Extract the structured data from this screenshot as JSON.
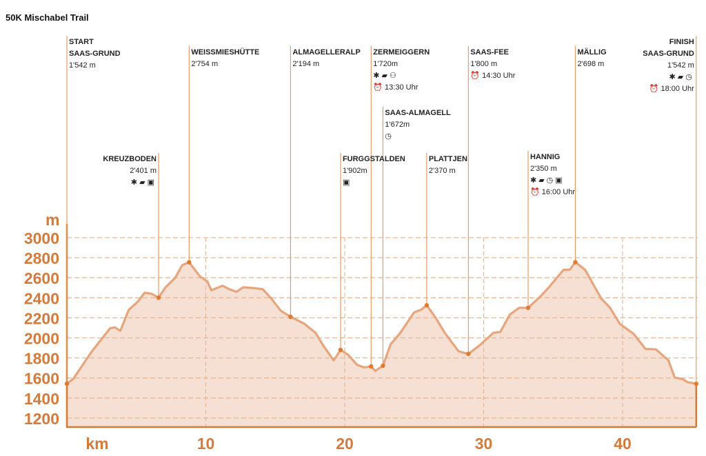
{
  "title": "50K Mischabel Trail",
  "icons": {
    "aid": "food-aid-icon",
    "van": "medical-van-icon",
    "toilets": "toilets-icon",
    "cablecar": "cable-car-icon",
    "stopwatch": "stopwatch-icon",
    "alarm": "alarm-clock-icon"
  },
  "colors": {
    "axis": "#d47a3a",
    "profile_line": "#e6a57c",
    "profile_fill": "#f5e0d3",
    "marker_line": "#e59c6c",
    "marker_dot": "#e07b30",
    "grid": "#e8b896"
  },
  "chart_data": {
    "type": "area",
    "title": "50K Mischabel Trail",
    "xlabel": "km",
    "ylabel": "m",
    "xlim": [
      0,
      45.3
    ],
    "ylim": [
      1100,
      3000
    ],
    "xticks": [
      10,
      20,
      30,
      40
    ],
    "yticks": [
      1200,
      1400,
      1600,
      1800,
      2000,
      2200,
      2400,
      2600,
      2800,
      3000
    ],
    "grid": true,
    "profile": {
      "km": [
        0,
        0.45,
        1.8,
        3.1,
        3.45,
        3.85,
        4.45,
        5.1,
        5.6,
        6.1,
        6.6,
        7.1,
        7.8,
        8.3,
        8.8,
        9.6,
        10.1,
        10.4,
        11.2,
        11.7,
        12.2,
        12.7,
        13.6,
        14.1,
        14.7,
        15.4,
        16.1,
        17.1,
        17.9,
        18.4,
        19.2,
        19.7,
        20.25,
        20.9,
        21.4,
        21.9,
        22.2,
        22.75,
        23.3,
        24.0,
        25.0,
        25.5,
        25.9,
        26.5,
        27.2,
        28.2,
        28.9,
        29.7,
        30.7,
        31.2,
        31.9,
        32.55,
        33.2,
        34.1,
        34.7,
        35.75,
        36.2,
        36.6,
        37.3,
        38.45,
        39.1,
        39.8,
        40.8,
        41.65,
        42.4,
        43.3,
        43.75,
        44.3,
        44.7,
        45.3
      ],
      "elevation": [
        1542,
        1590,
        1865,
        2095,
        2105,
        2070,
        2280,
        2360,
        2450,
        2440,
        2401,
        2505,
        2600,
        2725,
        2754,
        2610,
        2565,
        2475,
        2520,
        2485,
        2460,
        2505,
        2495,
        2485,
        2395,
        2270,
        2210,
        2140,
        2050,
        1935,
        1775,
        1880,
        1830,
        1730,
        1705,
        1715,
        1670,
        1722,
        1935,
        2050,
        2255,
        2280,
        2325,
        2210,
        2050,
        1865,
        1840,
        1925,
        2050,
        2060,
        2235,
        2300,
        2300,
        2415,
        2505,
        2680,
        2680,
        2755,
        2680,
        2395,
        2300,
        2140,
        2040,
        1890,
        1885,
        1775,
        1605,
        1590,
        1557,
        1542
      ]
    },
    "stations": [
      {
        "lines": [
          "START",
          "SAAS-GRUND",
          "1'542 m"
        ],
        "km": 0,
        "icons": [],
        "time": ""
      },
      {
        "lines": [
          "KREUZBODEN",
          "2'401 m"
        ],
        "km": 6.6,
        "icons": [
          "aid",
          "van",
          "cablecar"
        ],
        "time": ""
      },
      {
        "lines": [
          "WEISSMIESHÜTTE",
          "2'754 m"
        ],
        "km": 8.8,
        "icons": [],
        "time": ""
      },
      {
        "lines": [
          "ALMAGELLERALP",
          "2'194 m"
        ],
        "km": 16.1,
        "icons": [],
        "time": ""
      },
      {
        "lines": [
          "FURGGSTALDEN",
          "1'902m"
        ],
        "km": 19.7,
        "icons": [
          "cablecar"
        ],
        "time": ""
      },
      {
        "lines": [
          "ZERMEIGGERN",
          "1'720m"
        ],
        "km": 21.9,
        "icons": [
          "aid",
          "van",
          "toilets"
        ],
        "time": "13:30 Uhr"
      },
      {
        "lines": [
          "SAAS-ALMAGELL",
          "1'672m"
        ],
        "km": 22.75,
        "icons": [
          "stopwatch"
        ],
        "time": ""
      },
      {
        "lines": [
          "PLATTJEN",
          "2'370 m"
        ],
        "km": 25.9,
        "icons": [],
        "time": ""
      },
      {
        "lines": [
          "SAAS-FEE",
          "1'800 m"
        ],
        "km": 28.9,
        "icons": [],
        "time": "14:30 Uhr"
      },
      {
        "lines": [
          "HANNIG",
          "2'350 m"
        ],
        "km": 33.2,
        "icons": [
          "aid",
          "van",
          "stopwatch",
          "cablecar"
        ],
        "time": "16:00 Uhr"
      },
      {
        "lines": [
          "MÄLLIG",
          "2'698 m"
        ],
        "km": 36.6,
        "icons": [],
        "time": ""
      },
      {
        "lines": [
          "FINISH",
          "SAAS-GRUND",
          "1'542 m"
        ],
        "km": 45.3,
        "icons": [
          "aid",
          "van",
          "stopwatch"
        ],
        "time": "18:00 Uhr"
      }
    ]
  }
}
